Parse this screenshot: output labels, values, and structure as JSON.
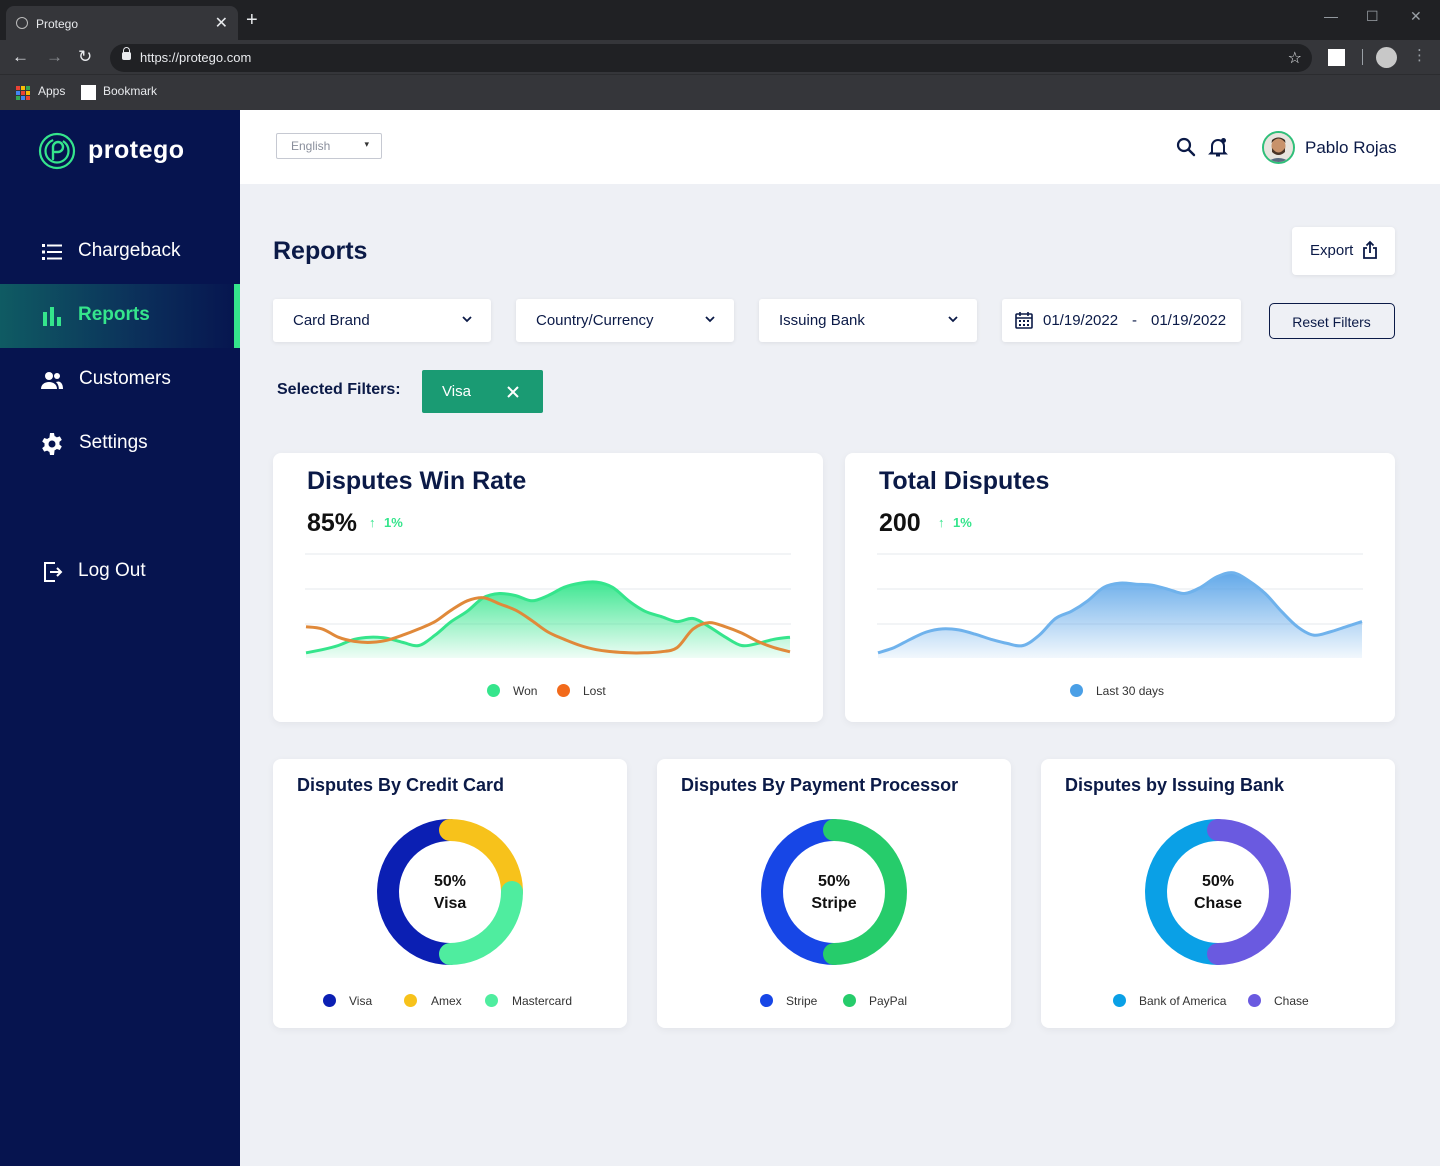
{
  "browser": {
    "tab_title": "Protego",
    "url": "https://protego.com",
    "bookmarks": [
      "Apps",
      "Bookmark"
    ]
  },
  "brand": {
    "name": "protego",
    "accent": "#35e58c",
    "nav_bg": "#06144f"
  },
  "sidebar": {
    "items": [
      {
        "label": "Chargeback",
        "icon": "list-icon",
        "active": false
      },
      {
        "label": "Reports",
        "icon": "bar-chart-icon",
        "active": true
      },
      {
        "label": "Customers",
        "icon": "users-icon",
        "active": false
      },
      {
        "label": "Settings",
        "icon": "gear-icon",
        "active": false
      }
    ],
    "logout_label": "Log Out"
  },
  "header": {
    "language": "English",
    "user_name": "Pablo Rojas"
  },
  "page": {
    "title": "Reports",
    "export_label": "Export",
    "filters": [
      "Card Brand",
      "Country/Currency",
      "Issuing Bank"
    ],
    "date_from": "01/19/2022",
    "date_sep": "-",
    "date_to": "01/19/2022",
    "reset_label": "Reset Filters",
    "selected_filters_label": "Selected Filters:",
    "selected_chip": "Visa"
  },
  "win_rate": {
    "title": "Disputes Win Rate",
    "value": "85%",
    "trend": "1%",
    "legend": [
      "Won",
      "Lost"
    ],
    "colors": [
      "#35e58c",
      "#f26a1b"
    ]
  },
  "total_disputes": {
    "title": "Total Disputes",
    "value": "200",
    "trend": "1%",
    "legend": [
      "Last 30 days"
    ],
    "colors": [
      "#4a9fe6"
    ]
  },
  "donuts": [
    {
      "title": "Disputes By Credit Card",
      "center_pct": "50%",
      "center_label": "Visa",
      "legend": [
        "Visa",
        "Amex",
        "Mastercard"
      ],
      "colors": [
        "#0b1fb3",
        "#f7c21b",
        "#4fed9f"
      ]
    },
    {
      "title": "Disputes By Payment Processor",
      "center_pct": "50%",
      "center_label": "Stripe",
      "legend": [
        "Stripe",
        "PayPal"
      ],
      "colors": [
        "#1746e6",
        "#26cc6b"
      ]
    },
    {
      "title": "Disputes by Issuing Bank",
      "center_pct": "50%",
      "center_label": "Chase",
      "legend": [
        "Bank of America",
        "Chase"
      ],
      "colors": [
        "#0aa0e6",
        "#6a5ae0"
      ]
    }
  ],
  "chart_data": [
    {
      "type": "area",
      "title": "Disputes Win Rate",
      "x": [
        0,
        1,
        2,
        3,
        4,
        5,
        6,
        7,
        8,
        9,
        10,
        11,
        12,
        13,
        14,
        15,
        16,
        17,
        18,
        19,
        20,
        21,
        22,
        23,
        24,
        25,
        26,
        27,
        28,
        29,
        30
      ],
      "series": [
        {
          "name": "Won",
          "values": [
            5,
            8,
            12,
            18,
            20,
            19,
            15,
            12,
            22,
            35,
            45,
            58,
            62,
            60,
            55,
            60,
            68,
            72,
            73,
            68,
            55,
            45,
            40,
            35,
            38,
            30,
            20,
            12,
            14,
            18,
            20
          ]
        },
        {
          "name": "Lost",
          "values": [
            30,
            28,
            20,
            16,
            15,
            17,
            22,
            28,
            35,
            46,
            55,
            58,
            52,
            46,
            36,
            25,
            18,
            12,
            8,
            6,
            5,
            5,
            6,
            10,
            28,
            34,
            30,
            24,
            16,
            10,
            6
          ]
        }
      ],
      "ylim": [
        0,
        100
      ],
      "grid": true,
      "legend_position": "bottom"
    },
    {
      "type": "area",
      "title": "Total Disputes",
      "x": [
        0,
        1,
        2,
        3,
        4,
        5,
        6,
        7,
        8,
        9,
        10,
        11,
        12,
        13,
        14,
        15,
        16,
        17,
        18,
        19,
        20,
        21,
        22,
        23,
        24,
        25,
        26,
        27,
        28,
        29,
        30
      ],
      "series": [
        {
          "name": "Last 30 days",
          "values": [
            5,
            10,
            18,
            25,
            28,
            27,
            23,
            18,
            14,
            12,
            22,
            38,
            45,
            55,
            68,
            72,
            71,
            70,
            66,
            62,
            68,
            78,
            82,
            74,
            62,
            45,
            30,
            22,
            25,
            30,
            35
          ]
        }
      ],
      "ylim": [
        0,
        100
      ],
      "grid": true,
      "legend_position": "bottom"
    },
    {
      "type": "pie",
      "title": "Disputes By Credit Card",
      "categories": [
        "Visa",
        "Amex",
        "Mastercard"
      ],
      "values": [
        50,
        25,
        25
      ]
    },
    {
      "type": "pie",
      "title": "Disputes By Payment Processor",
      "categories": [
        "Stripe",
        "PayPal"
      ],
      "values": [
        50,
        50
      ]
    },
    {
      "type": "pie",
      "title": "Disputes by Issuing Bank",
      "categories": [
        "Bank of America",
        "Chase"
      ],
      "values": [
        50,
        50
      ]
    }
  ]
}
